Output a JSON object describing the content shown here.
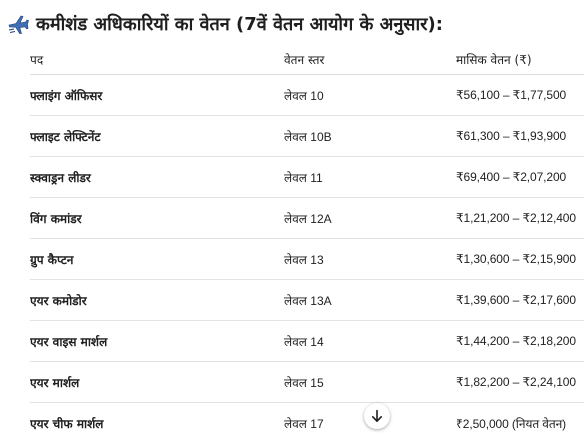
{
  "heading": {
    "icon": "airplane-icon",
    "title": "कमीशंड अधिकारियों का वेतन (7वें वेतन आयोग के अनुसार):"
  },
  "table": {
    "headers": [
      "पद",
      "वेतन स्तर",
      "मासिक वेतन (₹)"
    ],
    "rows": [
      [
        "फ्लाइंग ऑफिसर",
        "लेवल 10",
        "₹56,100 – ₹1,77,500"
      ],
      [
        "फ्लाइट लेफ्टिनेंट",
        "लेवल 10B",
        "₹61,300 – ₹1,93,900"
      ],
      [
        "स्क्वाड्रन लीडर",
        "लेवल 11",
        "₹69,400 – ₹2,07,200"
      ],
      [
        "विंग कमांडर",
        "लेवल 12A",
        "₹1,21,200 – ₹2,12,400"
      ],
      [
        "ग्रुप कैप्टन",
        "लेवल 13",
        "₹1,30,600 – ₹2,15,900"
      ],
      [
        "एयर कमोडोर",
        "लेवल 13A",
        "₹1,39,600 – ₹2,17,600"
      ],
      [
        "एयर वाइस मार्शल",
        "लेवल 14",
        "₹1,44,200 – ₹2,18,200"
      ],
      [
        "एयर मार्शल",
        "लेवल 15",
        "₹1,82,200 – ₹2,24,100"
      ],
      [
        "एयर चीफ मार्शल",
        "लेवल 17",
        "₹2,50,000 (नियत वेतन)"
      ]
    ]
  },
  "controls": {
    "scroll_down_icon": "arrow-down-icon"
  },
  "colors": {
    "text": "#1f1f1f",
    "divider": "#e3e3e3",
    "plane_blue": "#3f6fb5"
  }
}
